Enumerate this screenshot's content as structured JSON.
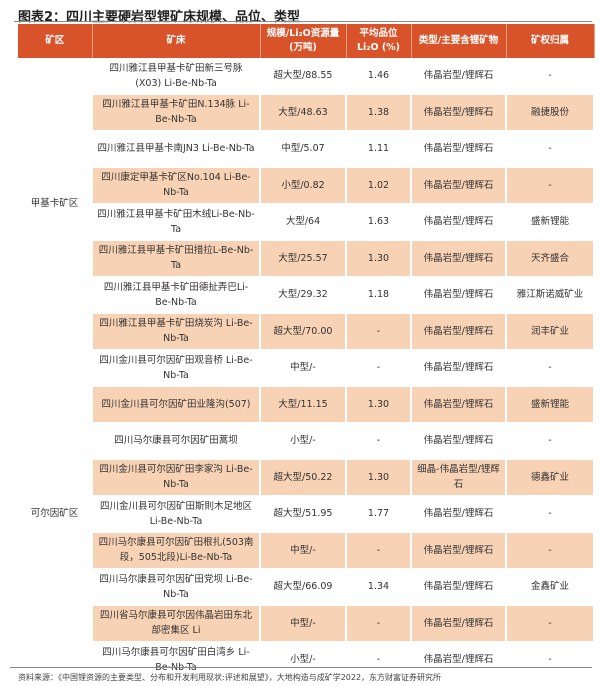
{
  "title": "图表2：四川主要硬岩型锂矿床规模、品位、类型",
  "headers": [
    "矿区",
    "矿床",
    "规模/Li₂O资源量(万吨)",
    "平均品位Li₂O (%)",
    "类型/主要含锂矿物",
    "矿权归属"
  ],
  "districts": [
    "甲基卡矿区",
    "可尔因矿区"
  ],
  "rows": [
    {
      "deposit": "四川雅江县甲基卡矿田新三号脉(X03) Li-Be-Nb-Ta",
      "scale": "超大型/88.55",
      "grade": "1.46",
      "type": "伟晶岩型/锂辉石",
      "owner": "-"
    },
    {
      "deposit": "四川雅江县甲基卡矿田N.134脉 Li-Be-Nb-Ta",
      "scale": "大型/48.63",
      "grade": "1.38",
      "type": "伟晶岩型/锂辉石",
      "owner": "融捷股份"
    },
    {
      "deposit": "四川雅江县甲基卡南JN3 Li-Be-Nb-Ta",
      "scale": "中型/5.07",
      "grade": "1.11",
      "type": "伟晶岩型/锂辉石",
      "owner": "-"
    },
    {
      "deposit": "四川康定甲基卡矿区No.104 Li-Be-Nb-Ta",
      "scale": "小型/0.82",
      "grade": "1.02",
      "type": "伟晶岩型/锂辉石",
      "owner": "-"
    },
    {
      "deposit": "四川雅江县甲基卡矿田木绒Li-Be-Nb-Ta",
      "scale": "大型/64",
      "grade": "1.63",
      "type": "伟晶岩型/锂辉石",
      "owner": "盛新锂能"
    },
    {
      "deposit": "四川雅江县甲基卡矿田措拉L-Be-Nb-Ta",
      "scale": "大型/25.57",
      "grade": "1.30",
      "type": "伟晶岩型/锂辉石",
      "owner": "天齐盛合"
    },
    {
      "deposit": "四川雅江县甲基卡矿田德扯弄巴Li-Be-Nb-Ta",
      "scale": "大型/29.32",
      "grade": "1.18",
      "type": "伟晶岩型/锂辉石",
      "owner": "雅江斯诺威矿业"
    },
    {
      "deposit": "四川雅江县甲基卡矿田烧炭沟 Li-Be-Nb-Ta",
      "scale": "超大型/70.00",
      "grade": "-",
      "type": "伟晶岩型/锂辉石",
      "owner": "润丰矿业"
    },
    {
      "deposit": "四川金川县可尔因矿田观音桥 Li-Be-Nb-Ta",
      "scale": "中型/-",
      "grade": "-",
      "type": "伟晶岩型/锂辉石",
      "owner": "-"
    },
    {
      "deposit": "四川金川县可尔因矿田业隆沟(507)",
      "scale": "大型/11.15",
      "grade": "1.30",
      "type": "伟晶岩型/锂辉石",
      "owner": "盛新锂能"
    },
    {
      "deposit": "四川马尔康县可尔因矿田蒿坝",
      "scale": "小型/-",
      "grade": "-",
      "type": "伟晶岩型/锂辉石",
      "owner": "-"
    },
    {
      "deposit": "四川金川县可尔因矿田李家沟 Li-Be-Nb-Ta",
      "scale": "超大型/50.22",
      "grade": "1.30",
      "type": "细晶-伟晶岩型/锂辉石",
      "owner": "德鑫矿业"
    },
    {
      "deposit": "四川金川县可尔因矿田斯則木足地区 Li-Be-Nb-Ta",
      "scale": "超大型/51.95",
      "grade": "1.77",
      "type": "伟晶岩型/锂辉石",
      "owner": "-"
    },
    {
      "deposit": "四川马尔康县可尔因矿田根扎(503南段，505北段)Li-Be-Nb-Ta",
      "scale": "中型/-",
      "grade": "-",
      "type": "伟晶岩型/锂辉石",
      "owner": "-"
    },
    {
      "deposit": "四川马尔康县可尔因矿田党坝 Li-Be-Nb-Ta",
      "scale": "超大型/66.09",
      "grade": "1.34",
      "type": "伟晶岩型/锂辉石",
      "owner": "金鑫矿业"
    },
    {
      "deposit": "四川省马尔康县可尔因伟晶岩田东北部密集区 Li",
      "scale": "中型/-",
      "grade": "-",
      "type": "伟晶岩型/锂辉石",
      "owner": "-"
    },
    {
      "deposit": "四川马尔康县可尔因矿田白湾乡 Li-Be-Nb-Ta",
      "scale": "小型/-",
      "grade": "-",
      "type": "伟晶岩型/锂辉石",
      "owner": "-"
    }
  ],
  "source": "资料来源：《中国锂资源的主要类型、分布和开发利用现状:评述和展望》，大地构造与成矿学2022，东方财富证券研究所",
  "colors": {
    "header": "#d9532a",
    "stripe": "#f8d2b4"
  }
}
